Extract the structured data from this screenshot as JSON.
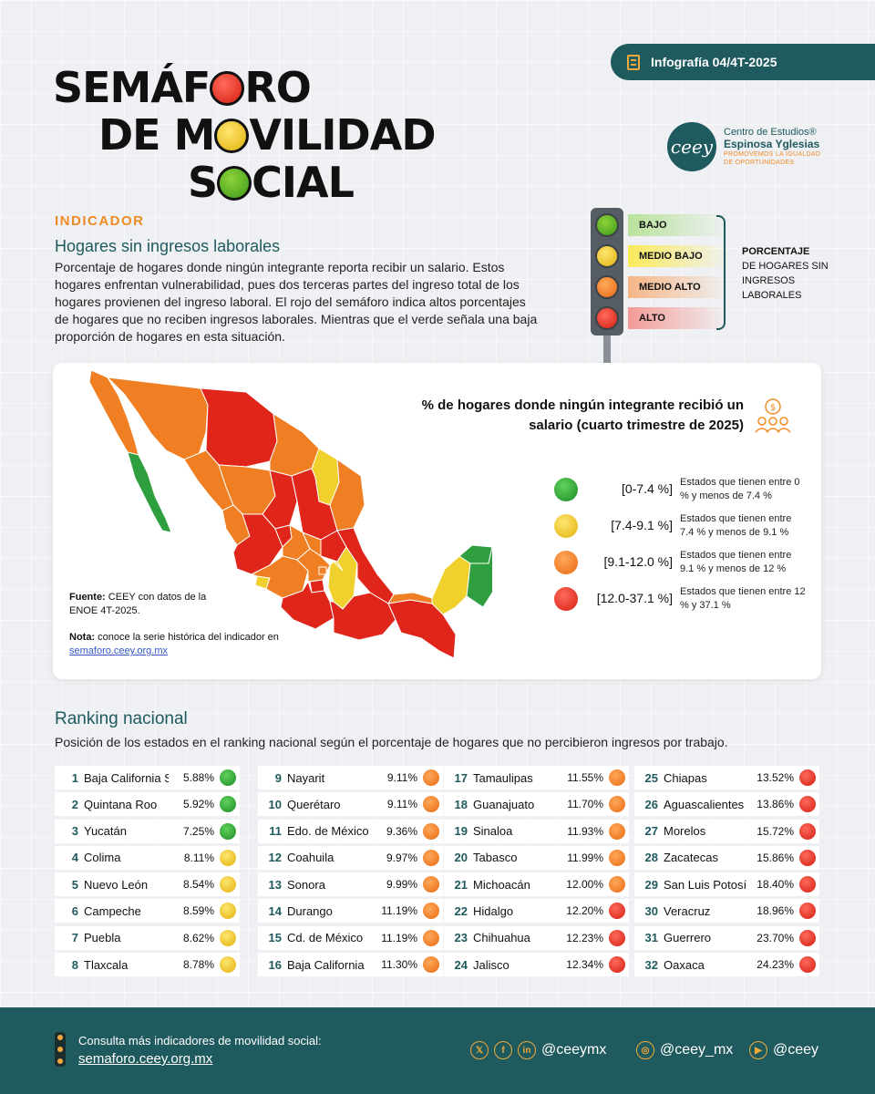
{
  "header": {
    "badge": "Infografía 04/4T-2025",
    "title_line1_a": "SEMÁF",
    "title_line1_b": "RO",
    "title_line2_a": "DE M",
    "title_line2_b": "VILIDAD",
    "title_line3_a": "S",
    "title_line3_b": "CIAL"
  },
  "logo": {
    "mark": "ceey",
    "line1": "Centro de Estudios®",
    "line2": "Espinosa Yglesias",
    "tagline1": "PROMOVEMOS LA IGUALDAD",
    "tagline2": "DE OPORTUNIDADES"
  },
  "indicator": {
    "label": "INDICADOR",
    "title": "Hogares sin ingresos laborales",
    "description": "Porcentaje de hogares donde ningún integrante reporta recibir un salario. Estos hogares enfrentan vulnerabilidad, pues dos terceras partes del ingreso total de los hogares provienen del ingreso laboral. El rojo del semáforo indica altos porcentajes de hogares que no reciben ingresos laborales. Mientras que el verde señala una baja proporción de hogares en esta situación."
  },
  "traffic_light": {
    "levels": [
      "BAJO",
      "MEDIO BAJO",
      "MEDIO ALTO",
      "ALTO"
    ],
    "caption_bold": "PORCENTAJE",
    "caption_rest": "DE HOGARES SIN INGRESOS LABORALES"
  },
  "colors": {
    "green": "#2e9e3e",
    "yellow": "#f0d02c",
    "orange": "#ef7f22",
    "red": "#e0251b",
    "teal": "#1e5a5e",
    "accent": "#f08a24"
  },
  "map_card": {
    "title": "% de hogares donde ningún integrante recibió un salario (cuarto trimestre de 2025)",
    "legend": [
      {
        "range": "[0-7.4 %]",
        "desc": "Estados que tienen entre 0 % y menos de 7.4 %",
        "color": "#2e9e3e"
      },
      {
        "range": "[7.4-9.1 %]",
        "desc": "Estados que tienen entre 7.4 % y menos de 9.1 %",
        "color": "#f0d02c"
      },
      {
        "range": "[9.1-12.0 %]",
        "desc": "Estados que tienen entre 9.1 % y menos de 12 %",
        "color": "#ef7f22"
      },
      {
        "range": "[12.0-37.1 %]",
        "desc": "Estados que tienen entre 12 % y 37.1 %",
        "color": "#e0251b"
      }
    ],
    "source_label": "Fuente:",
    "source_text": "CEEY con datos de la ENOE 4T-2025.",
    "note_label": "Nota:",
    "note_text": "conoce la serie histórica del indicador en",
    "note_link": "semaforo.ceey.org.mx"
  },
  "ranking": {
    "title": "Ranking nacional",
    "subtitle": "Posición de los estados en el ranking nacional según el porcentaje de hogares que no percibieron ingresos por trabajo.",
    "rows": [
      {
        "n": "1",
        "state": "Baja California Sur",
        "value": "5.88%",
        "level": "green"
      },
      {
        "n": "2",
        "state": "Quintana Roo",
        "value": "5.92%",
        "level": "green"
      },
      {
        "n": "3",
        "state": "Yucatán",
        "value": "7.25%",
        "level": "green"
      },
      {
        "n": "4",
        "state": "Colima",
        "value": "8.11%",
        "level": "yellow"
      },
      {
        "n": "5",
        "state": "Nuevo León",
        "value": "8.54%",
        "level": "yellow"
      },
      {
        "n": "6",
        "state": "Campeche",
        "value": "8.59%",
        "level": "yellow"
      },
      {
        "n": "7",
        "state": "Puebla",
        "value": "8.62%",
        "level": "yellow"
      },
      {
        "n": "8",
        "state": "Tlaxcala",
        "value": "8.78%",
        "level": "yellow"
      },
      {
        "n": "9",
        "state": "Nayarit",
        "value": "9.11%",
        "level": "orange"
      },
      {
        "n": "10",
        "state": "Querétaro",
        "value": "9.11%",
        "level": "orange"
      },
      {
        "n": "11",
        "state": "Edo. de México",
        "value": "9.36%",
        "level": "orange"
      },
      {
        "n": "12",
        "state": "Coahuila",
        "value": "9.97%",
        "level": "orange"
      },
      {
        "n": "13",
        "state": "Sonora",
        "value": "9.99%",
        "level": "orange"
      },
      {
        "n": "14",
        "state": "Durango",
        "value": "11.19%",
        "level": "orange"
      },
      {
        "n": "15",
        "state": "Cd. de México",
        "value": "11.19%",
        "level": "orange"
      },
      {
        "n": "16",
        "state": "Baja California",
        "value": "11.30%",
        "level": "orange"
      },
      {
        "n": "17",
        "state": "Tamaulipas",
        "value": "11.55%",
        "level": "orange"
      },
      {
        "n": "18",
        "state": "Guanajuato",
        "value": "11.70%",
        "level": "orange"
      },
      {
        "n": "19",
        "state": "Sinaloa",
        "value": "11.93%",
        "level": "orange"
      },
      {
        "n": "20",
        "state": "Tabasco",
        "value": "11.99%",
        "level": "orange"
      },
      {
        "n": "21",
        "state": "Michoacán",
        "value": "12.00%",
        "level": "orange"
      },
      {
        "n": "22",
        "state": "Hidalgo",
        "value": "12.20%",
        "level": "red"
      },
      {
        "n": "23",
        "state": "Chihuahua",
        "value": "12.23%",
        "level": "red"
      },
      {
        "n": "24",
        "state": "Jalisco",
        "value": "12.34%",
        "level": "red"
      },
      {
        "n": "25",
        "state": "Chiapas",
        "value": "13.52%",
        "level": "red"
      },
      {
        "n": "26",
        "state": "Aguascalientes",
        "value": "13.86%",
        "level": "red"
      },
      {
        "n": "27",
        "state": "Morelos",
        "value": "15.72%",
        "level": "red"
      },
      {
        "n": "28",
        "state": "Zacatecas",
        "value": "15.86%",
        "level": "red"
      },
      {
        "n": "29",
        "state": "San Luis Potosí",
        "value": "18.40%",
        "level": "red"
      },
      {
        "n": "30",
        "state": "Veracruz",
        "value": "18.96%",
        "level": "red"
      },
      {
        "n": "31",
        "state": "Guerrero",
        "value": "23.70%",
        "level": "red"
      },
      {
        "n": "32",
        "state": "Oaxaca",
        "value": "24.23%",
        "level": "red"
      }
    ]
  },
  "footer": {
    "label": "Consulta más indicadores de movilidad social:",
    "link": "semaforo.ceey.org.mx",
    "social_x": "@ceeymx",
    "social_ig": "@ceey_mx",
    "social_yt": "@ceey",
    "icon_x": "𝕏",
    "icon_fb": "f",
    "icon_in": "in",
    "icon_ig": "◎",
    "icon_yt": "▶"
  }
}
